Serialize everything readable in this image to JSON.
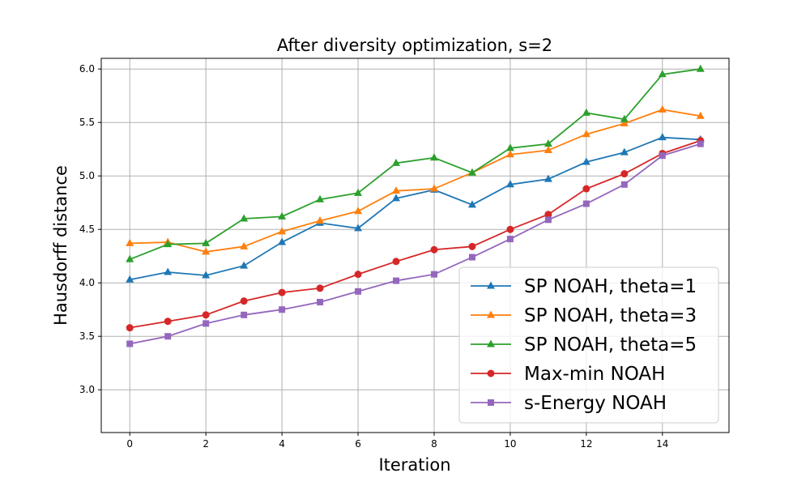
{
  "chart_data": {
    "type": "line",
    "title": "After diversity optimization, s=2",
    "xlabel": "Iteration",
    "ylabel": "Hausdorff distance",
    "xlim": [
      -0.75,
      15.75
    ],
    "ylim": [
      2.6,
      6.1
    ],
    "x_ticks": [
      0,
      2,
      4,
      6,
      8,
      10,
      12,
      14
    ],
    "y_ticks": [
      "3.0",
      "3.5",
      "4.0",
      "4.5",
      "5.0",
      "5.5",
      "6.0"
    ],
    "grid": true,
    "legend_position": "lower-right",
    "x": [
      0,
      1,
      2,
      3,
      4,
      5,
      6,
      7,
      8,
      9,
      10,
      11,
      12,
      13,
      14,
      15
    ],
    "series": [
      {
        "name": "SP NOAH, theta=1",
        "color": "#1f77b4",
        "marker": "triangle",
        "values": [
          4.03,
          4.1,
          4.07,
          4.16,
          4.38,
          4.56,
          4.51,
          4.79,
          4.87,
          4.73,
          4.92,
          4.97,
          5.13,
          5.22,
          5.36,
          5.34
        ]
      },
      {
        "name": "SP NOAH, theta=3",
        "color": "#ff7f0e",
        "marker": "triangle",
        "values": [
          4.37,
          4.38,
          4.29,
          4.34,
          4.48,
          4.58,
          4.67,
          4.86,
          4.88,
          5.03,
          5.2,
          5.24,
          5.39,
          5.49,
          5.62,
          5.56
        ]
      },
      {
        "name": "SP NOAH, theta=5",
        "color": "#2ca02c",
        "marker": "triangle",
        "values": [
          4.22,
          4.36,
          4.37,
          4.6,
          4.62,
          4.78,
          4.84,
          5.12,
          5.17,
          5.03,
          5.26,
          5.3,
          5.59,
          5.53,
          5.95,
          6.0
        ]
      },
      {
        "name": "Max-min NOAH",
        "color": "#d62728",
        "marker": "circle",
        "values": [
          3.58,
          3.64,
          3.7,
          3.83,
          3.91,
          3.95,
          4.08,
          4.2,
          4.31,
          4.34,
          4.5,
          4.64,
          4.88,
          5.02,
          5.21,
          5.33
        ]
      },
      {
        "name": "s-Energy NOAH",
        "color": "#9467bd",
        "marker": "square",
        "values": [
          3.43,
          3.5,
          3.62,
          3.7,
          3.75,
          3.82,
          3.92,
          4.02,
          4.08,
          4.24,
          4.41,
          4.59,
          4.74,
          4.92,
          5.19,
          5.3
        ]
      }
    ]
  }
}
